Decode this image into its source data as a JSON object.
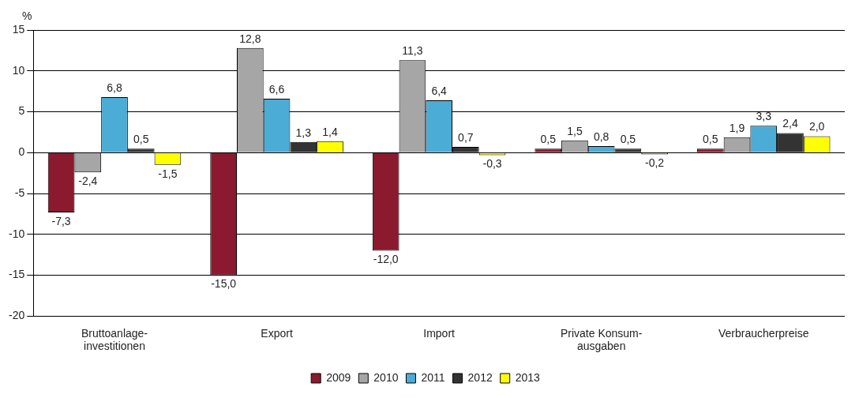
{
  "chart_data": {
    "type": "bar",
    "ylabel": "%",
    "categories": [
      "Bruttoanlage-\ninvestitionen",
      "Export",
      "Import",
      "Private Konsum-\nausgaben",
      "Verbraucherpreise"
    ],
    "series": [
      {
        "name": "2009",
        "color": "#8b1a2e",
        "values": [
          -7.3,
          -15.0,
          -12.0,
          0.5,
          0.5
        ],
        "value_labels": [
          "-7,3",
          "-15,0",
          "-12,0",
          "0,5",
          "0,5"
        ]
      },
      {
        "name": "2010",
        "color": "#a6a6a6",
        "values": [
          -2.4,
          12.8,
          11.3,
          1.5,
          1.9
        ],
        "value_labels": [
          "-2,4",
          "12,8",
          "11,3",
          "1,5",
          "1,9"
        ]
      },
      {
        "name": "2011",
        "color": "#4bacd6",
        "values": [
          6.8,
          6.6,
          6.4,
          0.8,
          3.3
        ],
        "value_labels": [
          "6,8",
          "6,6",
          "6,4",
          "0,8",
          "3,3"
        ]
      },
      {
        "name": "2012",
        "color": "#333333",
        "values": [
          0.5,
          1.3,
          0.7,
          0.5,
          2.4
        ],
        "value_labels": [
          "0,5",
          "1,3",
          "0,7",
          "0,5",
          "2,4"
        ]
      },
      {
        "name": "2013",
        "color": "#ffff00",
        "values": [
          -1.5,
          1.4,
          -0.3,
          -0.2,
          2.0
        ],
        "value_labels": [
          "-1,5",
          "1,4",
          "-0,3",
          "-0,2",
          "2,0"
        ]
      }
    ],
    "ylim": [
      -20,
      15
    ],
    "yticks": [
      -20,
      -15,
      -10,
      -5,
      0,
      5,
      10,
      15
    ],
    "grid": "y",
    "legend": "bottom"
  }
}
